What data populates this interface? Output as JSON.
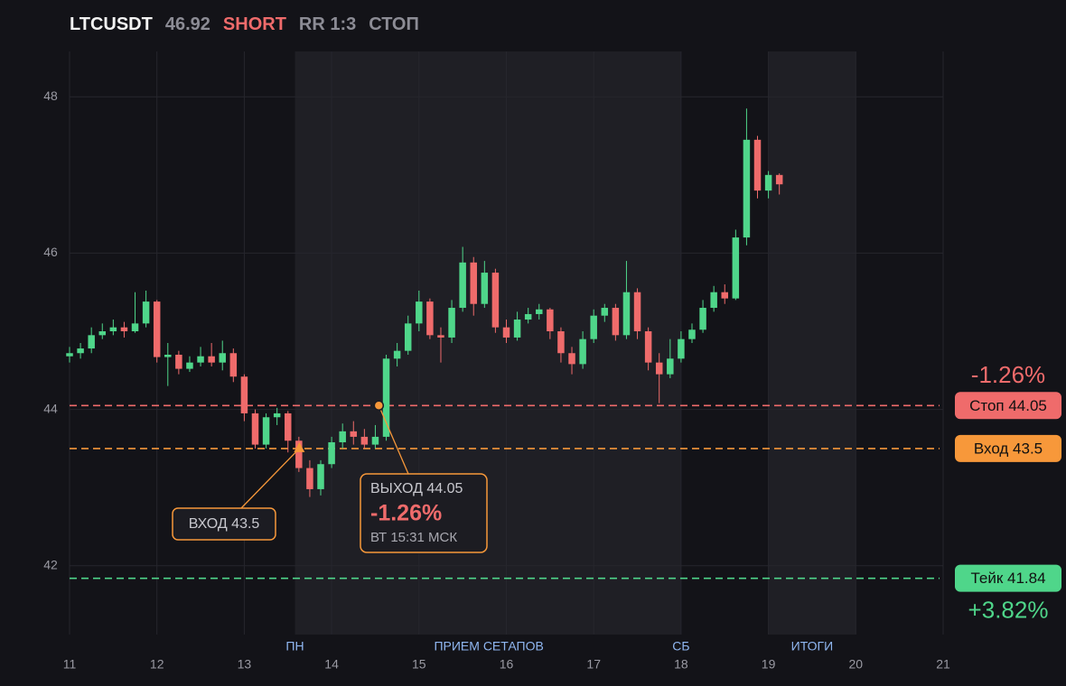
{
  "header": {
    "symbol": "LTCUSDT",
    "price": "46.92",
    "side": "SHORT",
    "rr": "RR 1:3",
    "status": "СТОП"
  },
  "chart_data": {
    "type": "candlestick",
    "xlim": [
      11,
      21
    ],
    "xticks": [
      11,
      12,
      13,
      14,
      15,
      16,
      17,
      18,
      19,
      20,
      21
    ],
    "ylim": [
      41.12,
      48.58
    ],
    "yticks": [
      42,
      44,
      46,
      48
    ],
    "grid": true,
    "up_color": "#4fd68a",
    "down_color": "#ef6b6b",
    "x": [
      11,
      11.125,
      11.25,
      11.375,
      11.5,
      11.625,
      11.75,
      11.875,
      12,
      12.125,
      12.25,
      12.375,
      12.5,
      12.625,
      12.75,
      12.875,
      13,
      13.125,
      13.25,
      13.375,
      13.5,
      13.625,
      13.75,
      13.875,
      14,
      14.125,
      14.25,
      14.375,
      14.5,
      14.625,
      14.75,
      14.875,
      15,
      15.125,
      15.25,
      15.375,
      15.5,
      15.625,
      15.75,
      15.875,
      16,
      16.125,
      16.25,
      16.375,
      16.5,
      16.625,
      16.75,
      16.875,
      17,
      17.125,
      17.25,
      17.375,
      17.5,
      17.625,
      17.75,
      17.875,
      18,
      18.125,
      18.25,
      18.375,
      18.5,
      18.625,
      18.75,
      18.875,
      19,
      19.125
    ],
    "open": [
      44.68,
      44.72,
      44.78,
      44.95,
      45.0,
      45.05,
      45.0,
      45.1,
      45.38,
      44.67,
      44.7,
      44.52,
      44.6,
      44.68,
      44.6,
      44.72,
      44.42,
      43.95,
      43.55,
      43.9,
      43.95,
      43.6,
      43.25,
      42.98,
      43.3,
      43.58,
      43.72,
      43.65,
      43.55,
      43.65,
      44.65,
      44.75,
      45.1,
      45.38,
      44.95,
      44.92,
      45.3,
      45.88,
      45.35,
      45.75,
      45.05,
      44.92,
      45.15,
      45.22,
      45.28,
      45.0,
      44.72,
      44.58,
      44.9,
      45.2,
      45.3,
      44.95,
      45.5,
      45.0,
      44.6,
      44.45,
      44.65,
      44.9,
      45.02,
      45.3,
      45.5,
      45.42,
      46.2,
      47.45,
      46.8,
      47.0
    ],
    "high": [
      44.8,
      44.85,
      45.05,
      45.1,
      45.15,
      45.12,
      45.5,
      45.52,
      45.4,
      44.85,
      44.75,
      44.68,
      44.8,
      44.85,
      44.88,
      44.78,
      44.45,
      44.0,
      43.95,
      44.02,
      43.98,
      43.65,
      43.35,
      43.35,
      43.65,
      43.82,
      43.85,
      43.75,
      43.8,
      44.7,
      44.85,
      45.2,
      45.52,
      45.42,
      45.05,
      45.4,
      46.08,
      45.95,
      45.9,
      45.8,
      45.15,
      45.25,
      45.3,
      45.35,
      45.3,
      45.05,
      44.8,
      45.0,
      45.28,
      45.35,
      45.35,
      45.9,
      45.55,
      45.05,
      44.72,
      44.9,
      45.0,
      45.1,
      45.4,
      45.58,
      45.6,
      46.3,
      47.85,
      47.5,
      47.05,
      47.02
    ],
    "low": [
      44.6,
      44.65,
      44.72,
      44.9,
      44.95,
      44.92,
      44.98,
      45.05,
      44.6,
      44.3,
      44.45,
      44.48,
      44.55,
      44.55,
      44.5,
      44.35,
      43.85,
      43.5,
      43.5,
      43.8,
      43.45,
      43.2,
      42.88,
      42.9,
      43.25,
      43.5,
      43.55,
      43.5,
      43.5,
      43.6,
      44.55,
      44.7,
      45.0,
      44.9,
      44.6,
      44.85,
      45.25,
      45.2,
      45.3,
      44.98,
      44.85,
      44.88,
      45.1,
      45.15,
      44.9,
      44.6,
      44.45,
      44.52,
      44.85,
      45.12,
      44.88,
      44.9,
      44.9,
      44.5,
      44.08,
      44.4,
      44.6,
      44.85,
      44.98,
      45.25,
      45.35,
      45.4,
      46.1,
      46.7,
      46.7,
      46.75
    ],
    "close": [
      44.72,
      44.78,
      44.95,
      45.0,
      45.05,
      45.0,
      45.1,
      45.38,
      44.67,
      44.7,
      44.52,
      44.6,
      44.68,
      44.6,
      44.72,
      44.42,
      43.95,
      43.55,
      43.9,
      43.95,
      43.6,
      43.25,
      42.98,
      43.3,
      43.58,
      43.72,
      43.65,
      43.55,
      43.65,
      44.65,
      44.75,
      45.1,
      45.38,
      44.95,
      44.92,
      45.3,
      45.88,
      45.35,
      45.75,
      45.05,
      44.92,
      45.15,
      45.22,
      45.28,
      45.0,
      44.72,
      44.58,
      44.9,
      45.2,
      45.3,
      44.95,
      45.5,
      45.0,
      44.6,
      44.45,
      44.65,
      44.9,
      45.02,
      45.3,
      45.5,
      45.42,
      46.2,
      47.45,
      46.8,
      47.0,
      46.88
    ],
    "sessions": [
      {
        "from": 13.58,
        "to": 18
      },
      {
        "from": 19,
        "to": 20
      }
    ],
    "session_labels": [
      {
        "x": 13.58,
        "label": "ПН"
      },
      {
        "x": 15.8,
        "label": "ПРИЕМ СЕТАПОВ"
      },
      {
        "x": 18,
        "label": "СБ"
      },
      {
        "x": 19.5,
        "label": "ИТОГИ"
      }
    ],
    "levels": [
      {
        "value": 44.05,
        "label": "Стоп 44.05",
        "color": "#ef6b6b"
      },
      {
        "value": 43.5,
        "label": "Вход 43.5",
        "color": "#f7983a"
      },
      {
        "value": 41.84,
        "label": "Тейк 41.84",
        "color": "#4fd68a"
      }
    ],
    "stop_pct": "-1.26%",
    "take_pct": "+3.82%",
    "entry": {
      "x": 13.63,
      "y": 43.5,
      "label": "ВХОД 43.5"
    },
    "exit": {
      "x": 14.54,
      "y": 44.05,
      "label": "ВЫХОД 44.05",
      "pct": "-1.26%",
      "time": "ВТ 15:31 МСК"
    }
  }
}
